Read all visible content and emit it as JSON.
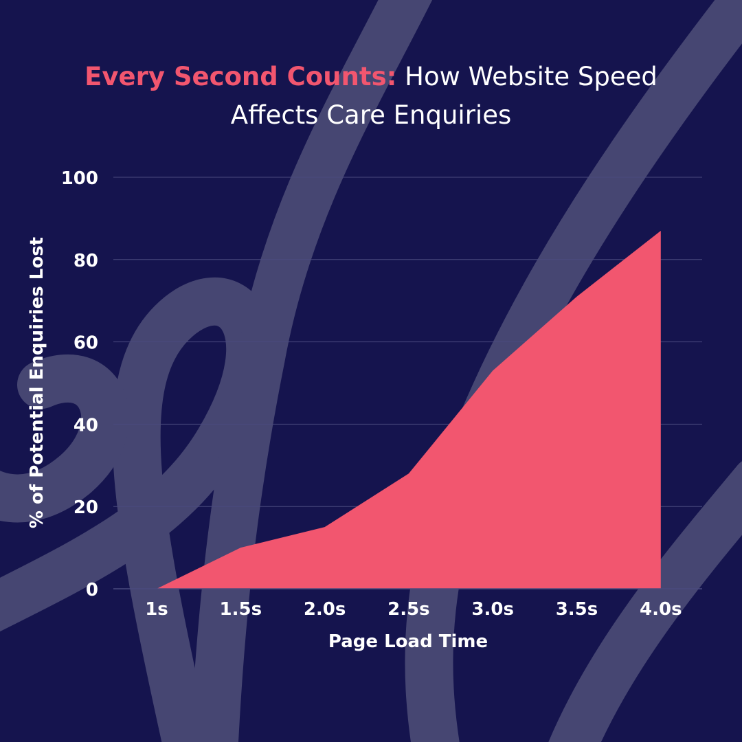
{
  "colors": {
    "background": "#15144e",
    "accent": "#f2566f",
    "text": "#ffffff",
    "gridline": "#4a4a7e",
    "swirl": "#464672"
  },
  "header": {
    "title_highlight": "Every Second Counts:",
    "title_rest_line1": "How Website Speed",
    "title_rest_line2": "Affects Care Enquiries"
  },
  "chart_data": {
    "type": "area",
    "categories": [
      "1s",
      "1.5s",
      "2.0s",
      "2.5s",
      "3.0s",
      "3.5s",
      "4.0s"
    ],
    "series": [
      {
        "values": [
          0,
          10,
          15,
          28,
          53,
          71,
          87
        ]
      }
    ],
    "xlabel": "Page Load Time",
    "ylabel": "% of Potential Enquiries Lost",
    "ylim": [
      0,
      100
    ],
    "yticks": [
      0,
      20,
      40,
      60,
      80,
      100
    ],
    "grid": true,
    "legend": "none"
  }
}
